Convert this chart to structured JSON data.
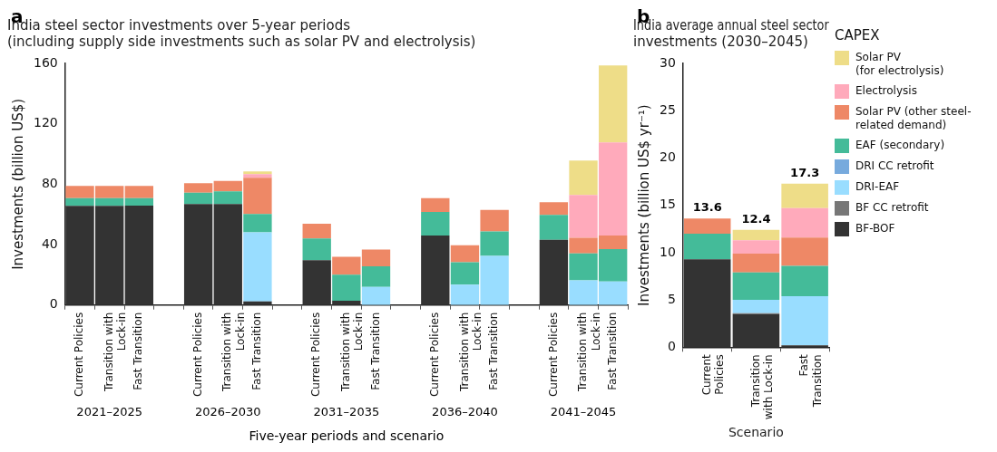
{
  "chart_data": [
    {
      "type": "bar",
      "stacked": true,
      "title": "India steel sector investments over 5-year periods\n(including supply side investments such as solar PV and electrolysis)",
      "xlabel": "Five-year periods and scenario",
      "ylabel": "Investments (billion US$)",
      "annotations": [
        "a",
        "2021–2025",
        "2026–2030",
        "2031–2035",
        "2036–2040",
        "2041–2045"
      ],
      "categories": [
        "Current Policies",
        "Transition with\nLock-in",
        "Fast Transition",
        null,
        "Current Policies",
        "Transition with\nLock-in",
        "Fast Transition",
        null,
        "Current Policies",
        "Transition with\nLock-in",
        "Fast Transition",
        null,
        "Current Policies",
        "Transition with\nLock-in",
        "Fast Transition",
        null,
        "Current Policies",
        "Transition with\nLock-in",
        "Fast Transition"
      ],
      "ylim": [
        0,
        160
      ],
      "yticks": [
        0,
        40,
        80,
        120,
        160
      ],
      "legend": false,
      "series": [
        {
          "color": "#333333",
          "values": [
            65.6,
            65.6,
            65.8,
            null,
            66.8,
            66.8,
            2.4,
            null,
            29.7,
            2.8,
            0,
            null,
            46.0,
            0,
            0,
            null,
            43.2,
            0,
            0
          ]
        },
        {
          "color": "#99ddff",
          "values": [
            0,
            0,
            0,
            null,
            0,
            0,
            45.7,
            null,
            0,
            0,
            12.0,
            null,
            0,
            13.5,
            32.6,
            null,
            0,
            16.3,
            15.6
          ]
        },
        {
          "color": "#44bb99",
          "values": [
            5.2,
            5.2,
            5.0,
            null,
            7.5,
            8.5,
            12.1,
            null,
            14.4,
            17.3,
            13.7,
            null,
            15.6,
            14.8,
            16.2,
            null,
            16.5,
            17.9,
            21.5
          ]
        },
        {
          "color": "#ee8866",
          "values": [
            8.0,
            8.0,
            8.0,
            null,
            6.4,
            6.8,
            24.0,
            null,
            9.7,
            11.8,
            11.1,
            null,
            9.2,
            11.3,
            14.2,
            null,
            8.3,
            10.4,
            8.9
          ]
        },
        {
          "color": "#ffaabb",
          "values": [
            0,
            0,
            0,
            null,
            0,
            0,
            2.4,
            null,
            0,
            0,
            0,
            null,
            0,
            0,
            0,
            null,
            0,
            28.3,
            61.6
          ]
        },
        {
          "color": "#eedd88",
          "values": [
            0,
            0,
            0,
            null,
            0,
            0,
            1.9,
            null,
            0,
            0,
            0,
            null,
            0,
            0,
            0,
            null,
            0,
            22.7,
            51.0
          ]
        }
      ]
    },
    {
      "type": "bar",
      "stacked": true,
      "title": "India average annual steel sector\ninvestments (2030–2045)",
      "xlabel": "Scenario",
      "ylabel": "Investments (billion US$ yr⁻¹)",
      "annotations": [
        "b"
      ],
      "categories": [
        "Current\nPolicies",
        "Transition\nwith Lock-in",
        "Fast\nTransition"
      ],
      "ylim": [
        0,
        30
      ],
      "yticks": [
        0,
        5,
        10,
        15,
        20,
        25,
        30
      ],
      "legend": "right",
      "legend_title": "CAPEX",
      "totals": [
        "13.6",
        "12.4",
        "17.3"
      ],
      "series": [
        {
          "name": "BF-BOF",
          "color": "#333333",
          "values": [
            9.3,
            3.5,
            0.2
          ]
        },
        {
          "name": "BF CC retrofit",
          "color": "#777777",
          "values": [
            0,
            0.1,
            0
          ]
        },
        {
          "name": "DRI-EAF",
          "color": "#99ddff",
          "values": [
            0,
            1.4,
            5.2
          ]
        },
        {
          "name": "DRI CC retrofit",
          "color": "#77aadd",
          "values": [
            0,
            0,
            0
          ]
        },
        {
          "name": "EAF (secondary)",
          "color": "#44bb99",
          "values": [
            2.7,
            2.9,
            3.2
          ]
        },
        {
          "name": "Solar PV (other steel-\nrelated demand)",
          "color": "#ee8866",
          "values": [
            1.6,
            2.0,
            3.0
          ]
        },
        {
          "name": "Electrolysis",
          "color": "#ffaabb",
          "values": [
            0,
            1.4,
            3.1
          ]
        },
        {
          "name": "Solar PV\n(for electrolysis)",
          "color": "#eedd88",
          "values": [
            0,
            1.1,
            2.6
          ]
        }
      ]
    }
  ]
}
